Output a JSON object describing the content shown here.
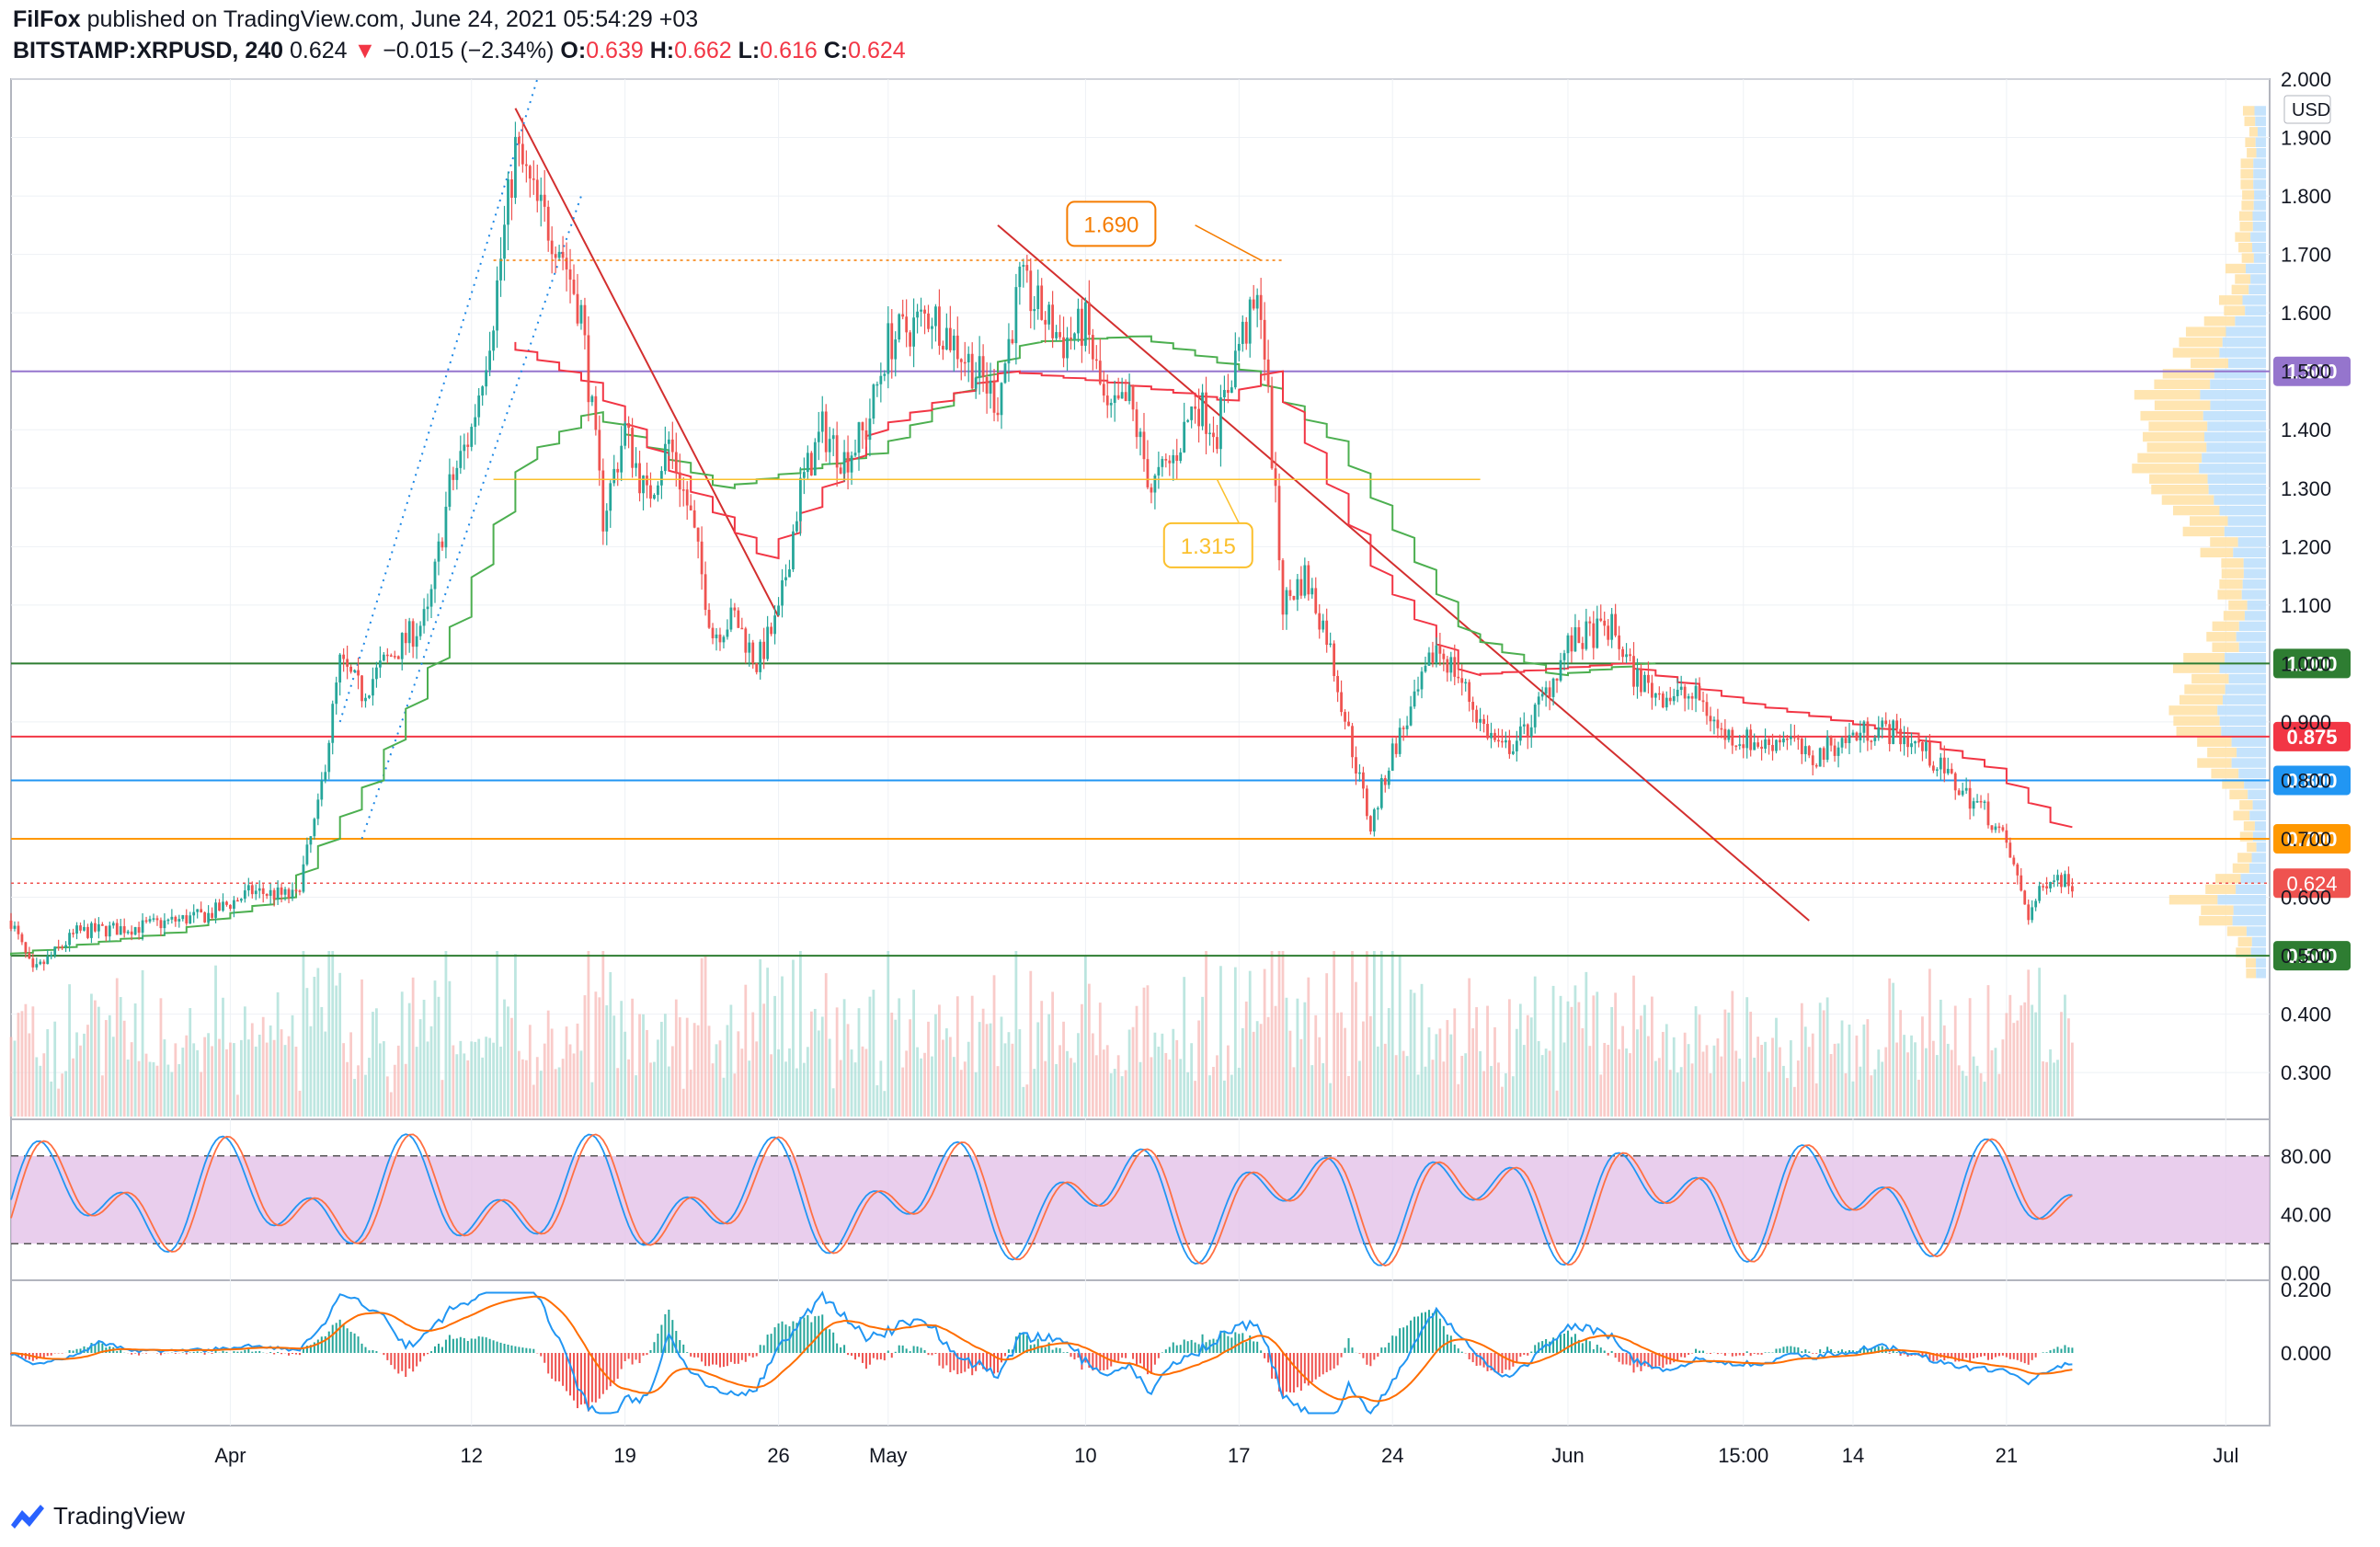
{
  "header": {
    "publisher": "FilFox",
    "published_text": "published on TradingView.com, June 24, 2021 05:54:29 +03",
    "symbol": "BITSTAMP:XRPUSD, 240",
    "last": "0.624",
    "change_arrow": "▼",
    "change": "−0.015 (−2.34%)",
    "o_label": "O:",
    "o_value": "0.639",
    "h_label": "H:",
    "h_value": "0.662",
    "l_label": "L:",
    "l_value": "0.616",
    "c_label": "C:",
    "c_value": "0.624"
  },
  "footer": {
    "brand": "TradingView",
    "logo_icon": "tradingview-logo-icon"
  },
  "colors": {
    "up": "#26a69a",
    "down": "#ef5350",
    "purple": "#9575cd",
    "green_level": "#2e7d32",
    "red_level": "#f23645",
    "blue_level": "#2196f3",
    "orange_level": "#ff9800",
    "rsi_band": "#e1bee7",
    "ma_red": "#f23645",
    "ma_green": "#4caf50"
  },
  "chart_data": {
    "type": "candlestick",
    "symbol": "BITSTAMP:XRPUSD",
    "timeframe": "240",
    "currency_label": "USD",
    "x_tick_labels": [
      "Apr",
      "12",
      "19",
      "26",
      "May",
      "10",
      "17",
      "24",
      "Jun",
      "15:00",
      "14",
      "21",
      "Jul"
    ],
    "x_tick_dates": [
      "2021-04-01",
      "2021-04-12",
      "2021-04-19",
      "2021-04-26",
      "2021-05-01",
      "2021-05-10",
      "2021-05-17",
      "2021-05-24",
      "2021-06-01",
      "2021-06-09",
      "2021-06-14",
      "2021-06-21",
      "2021-07-01"
    ],
    "x_range": [
      "2021-03-22",
      "2021-07-03"
    ],
    "y_range": [
      0.22,
      2.0
    ],
    "y_tick_labels": [
      "0.300",
      "0.400",
      "0.500",
      "0.600",
      "0.700",
      "0.800",
      "0.900",
      "1.000",
      "1.100",
      "1.200",
      "1.300",
      "1.400",
      "1.500",
      "1.600",
      "1.700",
      "1.800",
      "1.900",
      "2.000"
    ],
    "price_anchors": [
      [
        "2021-03-22",
        0.56
      ],
      [
        "2021-03-23",
        0.47
      ],
      [
        "2021-03-25",
        0.54
      ],
      [
        "2021-03-28",
        0.55
      ],
      [
        "2021-03-31",
        0.57
      ],
      [
        "2021-04-02",
        0.61
      ],
      [
        "2021-04-04",
        0.6
      ],
      [
        "2021-04-05",
        0.75
      ],
      [
        "2021-04-06",
        1.0
      ],
      [
        "2021-04-07",
        0.95
      ],
      [
        "2021-04-08",
        1.0
      ],
      [
        "2021-04-10",
        1.08
      ],
      [
        "2021-04-11",
        1.3
      ],
      [
        "2021-04-12",
        1.4
      ],
      [
        "2021-04-13",
        1.6
      ],
      [
        "2021-04-14",
        1.88
      ],
      [
        "2021-04-15",
        1.78
      ],
      [
        "2021-04-16",
        1.72
      ],
      [
        "2021-04-17",
        1.6
      ],
      [
        "2021-04-18",
        1.25
      ],
      [
        "2021-04-19",
        1.4
      ],
      [
        "2021-04-20",
        1.28
      ],
      [
        "2021-04-21",
        1.38
      ],
      [
        "2021-04-22",
        1.25
      ],
      [
        "2021-04-23",
        1.05
      ],
      [
        "2021-04-24",
        1.08
      ],
      [
        "2021-04-25",
        1.0
      ],
      [
        "2021-04-26",
        1.08
      ],
      [
        "2021-04-27",
        1.3
      ],
      [
        "2021-04-28",
        1.4
      ],
      [
        "2021-04-29",
        1.35
      ],
      [
        "2021-04-30",
        1.4
      ],
      [
        "2021-05-01",
        1.55
      ],
      [
        "2021-05-03",
        1.6
      ],
      [
        "2021-05-04",
        1.55
      ],
      [
        "2021-05-05",
        1.5
      ],
      [
        "2021-05-06",
        1.45
      ],
      [
        "2021-05-07",
        1.65
      ],
      [
        "2021-05-08",
        1.6
      ],
      [
        "2021-05-09",
        1.55
      ],
      [
        "2021-05-10",
        1.58
      ],
      [
        "2021-05-11",
        1.42
      ],
      [
        "2021-05-12",
        1.45
      ],
      [
        "2021-05-13",
        1.3
      ],
      [
        "2021-05-14",
        1.35
      ],
      [
        "2021-05-15",
        1.45
      ],
      [
        "2021-05-16",
        1.4
      ],
      [
        "2021-05-17",
        1.55
      ],
      [
        "2021-05-18",
        1.62
      ],
      [
        "2021-05-19",
        1.1
      ],
      [
        "2021-05-20",
        1.15
      ],
      [
        "2021-05-21",
        1.05
      ],
      [
        "2021-05-22",
        0.88
      ],
      [
        "2021-05-23",
        0.72
      ],
      [
        "2021-05-24",
        0.85
      ],
      [
        "2021-05-25",
        0.93
      ],
      [
        "2021-05-26",
        1.03
      ],
      [
        "2021-05-27",
        0.98
      ],
      [
        "2021-05-28",
        0.9
      ],
      [
        "2021-05-29",
        0.85
      ],
      [
        "2021-05-30",
        0.88
      ],
      [
        "2021-05-31",
        0.95
      ],
      [
        "2021-06-01",
        1.03
      ],
      [
        "2021-06-02",
        1.05
      ],
      [
        "2021-06-03",
        1.06
      ],
      [
        "2021-06-04",
        0.98
      ],
      [
        "2021-06-05",
        0.95
      ],
      [
        "2021-06-07",
        0.94
      ],
      [
        "2021-06-08",
        0.88
      ],
      [
        "2021-06-09",
        0.87
      ],
      [
        "2021-06-10",
        0.86
      ],
      [
        "2021-06-11",
        0.88
      ],
      [
        "2021-06-12",
        0.83
      ],
      [
        "2021-06-13",
        0.86
      ],
      [
        "2021-06-15",
        0.89
      ],
      [
        "2021-06-16",
        0.88
      ],
      [
        "2021-06-17",
        0.86
      ],
      [
        "2021-06-18",
        0.82
      ],
      [
        "2021-06-19",
        0.78
      ],
      [
        "2021-06-20",
        0.75
      ],
      [
        "2021-06-21",
        0.69
      ],
      [
        "2021-06-22",
        0.57
      ],
      [
        "2021-06-23",
        0.64
      ],
      [
        "2021-06-24",
        0.624
      ]
    ],
    "ma_fast_anchors": [
      [
        "2021-04-14",
        1.55
      ],
      [
        "2021-04-18",
        1.48
      ],
      [
        "2021-04-22",
        1.32
      ],
      [
        "2021-04-26",
        1.18
      ],
      [
        "2021-05-01",
        1.4
      ],
      [
        "2021-05-07",
        1.5
      ],
      [
        "2021-05-12",
        1.48
      ],
      [
        "2021-05-17",
        1.45
      ],
      [
        "2021-05-19",
        1.5
      ],
      [
        "2021-05-24",
        1.15
      ],
      [
        "2021-05-28",
        0.98
      ],
      [
        "2021-06-04",
        1.0
      ],
      [
        "2021-06-10",
        0.93
      ],
      [
        "2021-06-17",
        0.88
      ],
      [
        "2021-06-21",
        0.82
      ],
      [
        "2021-06-24",
        0.72
      ]
    ],
    "ma_slow_anchors": [
      [
        "2021-03-22",
        0.5
      ],
      [
        "2021-03-30",
        0.54
      ],
      [
        "2021-04-04",
        0.6
      ],
      [
        "2021-04-08",
        0.8
      ],
      [
        "2021-04-12",
        1.08
      ],
      [
        "2021-04-15",
        1.35
      ],
      [
        "2021-04-18",
        1.43
      ],
      [
        "2021-04-24",
        1.3
      ],
      [
        "2021-05-01",
        1.36
      ],
      [
        "2021-05-08",
        1.55
      ],
      [
        "2021-05-13",
        1.56
      ],
      [
        "2021-05-18",
        1.5
      ],
      [
        "2021-05-22",
        1.38
      ],
      [
        "2021-05-28",
        1.05
      ],
      [
        "2021-06-01",
        0.98
      ],
      [
        "2021-06-05",
        1.0
      ]
    ],
    "horizontal_levels": [
      {
        "label": "1.500",
        "value": 1.5,
        "color": "#9575cd"
      },
      {
        "label": "1.000",
        "value": 1.0,
        "color": "#2e7d32"
      },
      {
        "label": "0.875",
        "value": 0.875,
        "color": "#f23645"
      },
      {
        "label": "0.800",
        "value": 0.8,
        "color": "#2196f3"
      },
      {
        "label": "0.700",
        "value": 0.7,
        "color": "#ff9800"
      },
      {
        "label": "0.500",
        "value": 0.5,
        "color": "#2e7d32"
      }
    ],
    "last_price": {
      "label": "0.624",
      "value": 0.624,
      "color": "#ef5350"
    },
    "annotations": [
      {
        "label": "1.690",
        "value": 1.69,
        "date": "2021-05-18",
        "color": "#f57c00"
      },
      {
        "label": "1.315",
        "value": 1.315,
        "date": "2021-05-16",
        "color": "#fbc02d"
      }
    ],
    "trendlines": [
      {
        "from": [
          "2021-04-14",
          1.95
        ],
        "to": [
          "2021-04-26",
          1.08
        ],
        "color": "#d32f2f"
      },
      {
        "from": [
          "2021-05-06",
          1.75
        ],
        "to": [
          "2021-06-12",
          0.56
        ],
        "color": "#d32f2f"
      },
      {
        "from": [
          "2021-04-06",
          0.9
        ],
        "to": [
          "2021-04-15",
          2.0
        ],
        "color": "#1e88e5",
        "dotted": true
      },
      {
        "from": [
          "2021-04-07",
          0.7
        ],
        "to": [
          "2021-04-17",
          1.8
        ],
        "color": "#1e88e5",
        "dotted": true
      }
    ],
    "rsi": {
      "y_tick_labels": [
        "80.00",
        "40.00",
        "0.00"
      ],
      "upper": 80,
      "lower": 20,
      "y_range": [
        0,
        100
      ]
    },
    "macd": {
      "y_tick_labels": [
        "0.200",
        "0.000"
      ],
      "y_range": [
        -0.2,
        0.2
      ]
    }
  }
}
